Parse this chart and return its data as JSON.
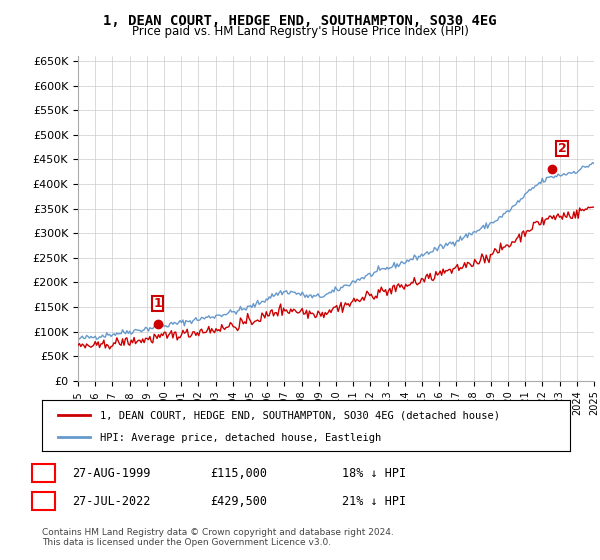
{
  "title": "1, DEAN COURT, HEDGE END, SOUTHAMPTON, SO30 4EG",
  "subtitle": "Price paid vs. HM Land Registry's House Price Index (HPI)",
  "legend_line1": "1, DEAN COURT, HEDGE END, SOUTHAMPTON, SO30 4EG (detached house)",
  "legend_line2": "HPI: Average price, detached house, Eastleigh",
  "transaction1_label": "1",
  "transaction1_date": "27-AUG-1999",
  "transaction1_price": "£115,000",
  "transaction1_hpi": "18% ↓ HPI",
  "transaction2_label": "2",
  "transaction2_date": "27-JUL-2022",
  "transaction2_price": "£429,500",
  "transaction2_hpi": "21% ↓ HPI",
  "footer": "Contains HM Land Registry data © Crown copyright and database right 2024.\nThis data is licensed under the Open Government Licence v3.0.",
  "hpi_color": "#6699CC",
  "price_color": "#CC0000",
  "marker1_color": "#CC0000",
  "marker2_color": "#CC0000",
  "label1_color": "#CC0000",
  "label2_color": "#CC0000",
  "ylim": [
    0,
    660000
  ],
  "yticks": [
    0,
    50000,
    100000,
    150000,
    200000,
    250000,
    300000,
    350000,
    400000,
    450000,
    500000,
    550000,
    600000,
    650000
  ],
  "background_color": "#FFFFFF",
  "grid_color": "#CCCCCC",
  "x_start_year": 1995,
  "x_end_year": 2025
}
